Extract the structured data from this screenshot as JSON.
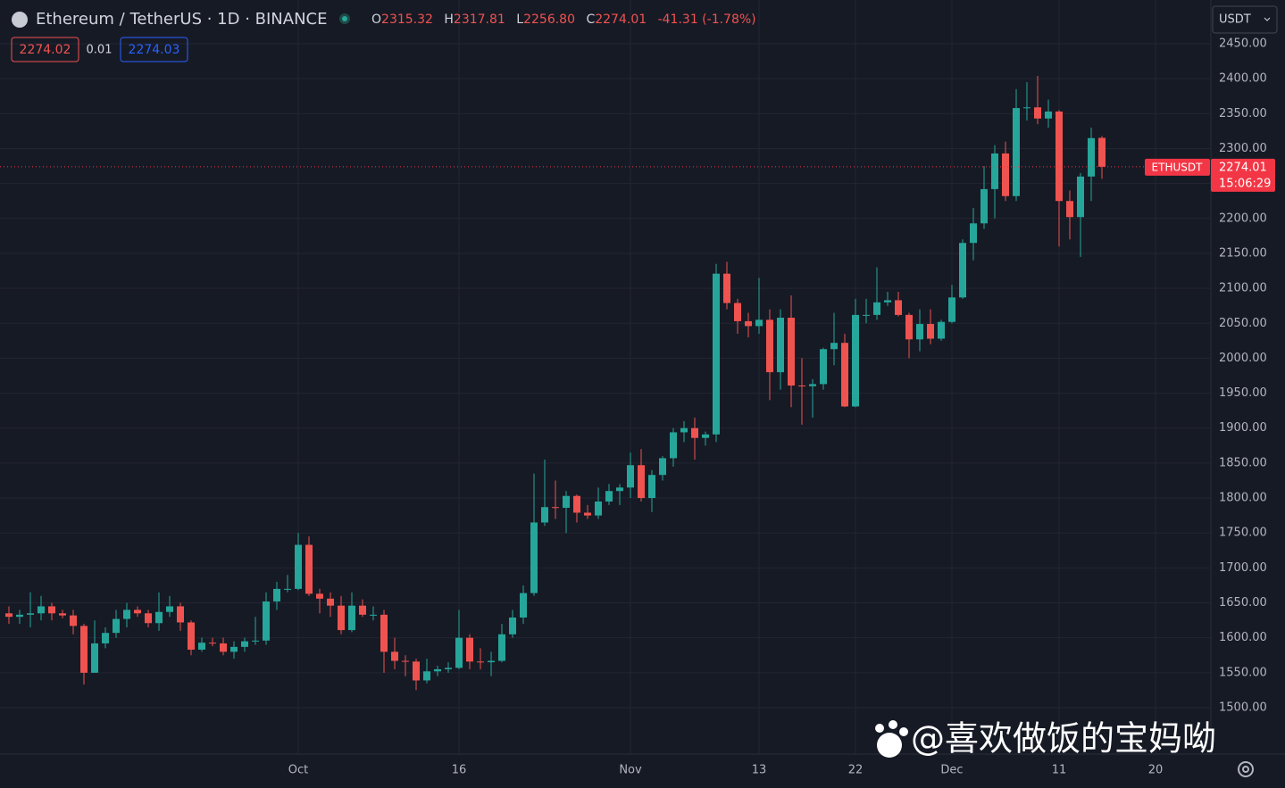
{
  "header": {
    "symbol": "Ethereum / TetherUS · 1D · BINANCE",
    "ohlc": [
      {
        "label": "O",
        "value": "2315.32"
      },
      {
        "label": "H",
        "value": "2317.81"
      },
      {
        "label": "L",
        "value": "2256.80"
      },
      {
        "label": "C",
        "value": "2274.01"
      }
    ],
    "change": "-41.31 (-1.78%)",
    "bid": "2274.02",
    "spread": "0.01",
    "ask": "2274.03",
    "currency": "USDT"
  },
  "watermark": "@喜欢做饭的宝妈呦",
  "chart_data": {
    "type": "candlestick",
    "up_color": "#26a69a",
    "down_color": "#ef5350",
    "grid": true,
    "categories": [
      null,
      null,
      null,
      null,
      null,
      null,
      null,
      null,
      null,
      null,
      null,
      null,
      null,
      null,
      null,
      null,
      null,
      null,
      null,
      null,
      null,
      null,
      null,
      null,
      null,
      null,
      null,
      "Oct",
      null,
      null,
      null,
      null,
      null,
      null,
      null,
      null,
      null,
      null,
      null,
      null,
      null,
      null,
      "16",
      null,
      null,
      null,
      null,
      null,
      null,
      null,
      null,
      null,
      null,
      null,
      null,
      null,
      null,
      null,
      "Nov",
      null,
      null,
      null,
      null,
      null,
      null,
      null,
      null,
      null,
      null,
      null,
      "13",
      null,
      null,
      null,
      null,
      null,
      null,
      null,
      null,
      "22",
      null,
      null,
      null,
      null,
      null,
      null,
      null,
      null,
      "Dec",
      null,
      null,
      null,
      null,
      null,
      null,
      null,
      null,
      null,
      "11",
      null,
      null,
      null,
      null,
      null,
      null,
      null,
      null,
      "20"
    ],
    "open": [
      1635,
      1630,
      1633,
      1635,
      1645,
      1635,
      1632,
      1617,
      1550,
      1592,
      1607,
      1627,
      1640,
      1635,
      1621,
      1637,
      1645,
      1622,
      1583,
      1593,
      1592,
      1580,
      1587,
      1595,
      1596,
      1652,
      1670,
      1670,
      1733,
      1663,
      1656,
      1646,
      1611,
      1646,
      1633,
      1633,
      1580,
      1567,
      1566,
      1539,
      1552,
      1555,
      1557,
      1600,
      1566,
      1565,
      1567,
      1605,
      1629,
      1664,
      1765,
      1787,
      1786,
      1803,
      1779,
      1775,
      1795,
      1810,
      1815,
      1847,
      1800,
      1833,
      1857,
      1894,
      1900,
      1886,
      1891,
      2121,
      2079,
      2053,
      2046,
      2055,
      1980,
      2058,
      1961,
      1960,
      1963,
      2013,
      2022,
      1931,
      2062,
      2062,
      2080,
      2083,
      2062,
      2027,
      2049,
      2028,
      2052,
      2087,
      2165,
      2193,
      2242,
      2293,
      2232,
      2358,
      2359,
      2343,
      2353,
      2225,
      2202,
      2260,
      2315.32,
      null,
      null,
      null,
      null,
      null
    ],
    "high": [
      1645,
      1640,
      1665,
      1660,
      1650,
      1640,
      1640,
      1620,
      1625,
      1615,
      1640,
      1650,
      1645,
      1640,
      1665,
      1660,
      1650,
      1625,
      1600,
      1600,
      1600,
      1595,
      1600,
      1630,
      1665,
      1680,
      1690,
      1750,
      1745,
      1670,
      1665,
      1660,
      1665,
      1655,
      1645,
      1640,
      1600,
      1575,
      1570,
      1570,
      1560,
      1565,
      1640,
      1605,
      1585,
      1580,
      1620,
      1640,
      1675,
      1835,
      1855,
      1825,
      1810,
      1805,
      1790,
      1815,
      1820,
      1820,
      1865,
      1870,
      1840,
      1860,
      1900,
      1910,
      1915,
      1895,
      2135,
      2138,
      2085,
      2065,
      2115,
      2070,
      2070,
      2090,
      2000,
      1970,
      2015,
      2065,
      2035,
      2085,
      2085,
      2130,
      2095,
      2095,
      2065,
      2070,
      2070,
      2055,
      2105,
      2170,
      2215,
      2275,
      2305,
      2310,
      2385,
      2395,
      2404,
      2370,
      2355,
      2240,
      2265,
      2330,
      2317.81,
      null,
      null,
      null,
      null,
      null
    ],
    "low": [
      1620,
      1620,
      1615,
      1625,
      1625,
      1628,
      1605,
      1533,
      1550,
      1585,
      1600,
      1615,
      1630,
      1615,
      1610,
      1630,
      1610,
      1575,
      1580,
      1588,
      1575,
      1570,
      1580,
      1590,
      1590,
      1640,
      1665,
      1668,
      1660,
      1635,
      1630,
      1605,
      1608,
      1630,
      1625,
      1550,
      1555,
      1545,
      1525,
      1535,
      1545,
      1550,
      1555,
      1555,
      1555,
      1545,
      1565,
      1600,
      1620,
      1660,
      1760,
      1770,
      1750,
      1765,
      1770,
      1770,
      1790,
      1790,
      1800,
      1795,
      1780,
      1825,
      1845,
      1880,
      1855,
      1875,
      1880,
      2070,
      2035,
      2030,
      2035,
      1940,
      1955,
      1930,
      1905,
      1915,
      1955,
      1990,
      1930,
      1930,
      2050,
      2055,
      2075,
      2060,
      2000,
      2010,
      2020,
      2025,
      2050,
      2085,
      2140,
      2185,
      2200,
      2225,
      2225,
      2340,
      2335,
      2330,
      2160,
      2170,
      2145,
      2225,
      2256.8,
      null,
      null,
      null,
      null,
      null
    ],
    "close": [
      1630,
      1633,
      1635,
      1645,
      1635,
      1632,
      1617,
      1550,
      1592,
      1607,
      1627,
      1640,
      1635,
      1621,
      1637,
      1645,
      1622,
      1583,
      1593,
      1592,
      1580,
      1587,
      1595,
      1596,
      1652,
      1670,
      1670,
      1733,
      1663,
      1656,
      1646,
      1611,
      1646,
      1633,
      1633,
      1580,
      1567,
      1566,
      1539,
      1552,
      1555,
      1557,
      1600,
      1566,
      1565,
      1567,
      1605,
      1629,
      1664,
      1765,
      1787,
      1786,
      1803,
      1779,
      1775,
      1795,
      1810,
      1815,
      1847,
      1800,
      1833,
      1857,
      1894,
      1900,
      1886,
      1891,
      2121,
      2079,
      2053,
      2046,
      2055,
      1980,
      2058,
      1961,
      1960,
      1963,
      2013,
      2022,
      1931,
      2062,
      2062,
      2080,
      2083,
      2062,
      2027,
      2049,
      2028,
      2052,
      2087,
      2165,
      2193,
      2242,
      2293,
      2232,
      2358,
      2359,
      2343,
      2353,
      2225,
      2202,
      2260,
      2315,
      2274.01,
      null,
      null,
      null,
      null,
      null
    ],
    "ylim": [
      1433.6,
      2512.6
    ],
    "yticks": [
      {
        "value": 1500,
        "label": "1500.00"
      },
      {
        "value": 1550,
        "label": "1550.00"
      },
      {
        "value": 1600,
        "label": "1600.00"
      },
      {
        "value": 1650,
        "label": "1650.00"
      },
      {
        "value": 1700,
        "label": "1700.00"
      },
      {
        "value": 1750,
        "label": "1750.00"
      },
      {
        "value": 1800,
        "label": "1800.00"
      },
      {
        "value": 1850,
        "label": "1850.00"
      },
      {
        "value": 1900,
        "label": "1900.00"
      },
      {
        "value": 1950,
        "label": "1950.00"
      },
      {
        "value": 2000,
        "label": "2000.00"
      },
      {
        "value": 2050,
        "label": "2050.00"
      },
      {
        "value": 2100,
        "label": "2100.00"
      },
      {
        "value": 2150,
        "label": "2150.00"
      },
      {
        "value": 2200,
        "label": "2200.00"
      },
      {
        "value": 2250,
        "label": "2250.00"
      },
      {
        "value": 2300,
        "label": "2300.00"
      },
      {
        "value": 2350,
        "label": "2350.00"
      },
      {
        "value": 2400,
        "label": "2400.00"
      },
      {
        "value": 2450,
        "label": "2450.00"
      }
    ],
    "price_tag": {
      "symbol": "ETHUSDT",
      "price": 2274.01,
      "countdown": "15:06:29",
      "color": "#f23645"
    }
  }
}
